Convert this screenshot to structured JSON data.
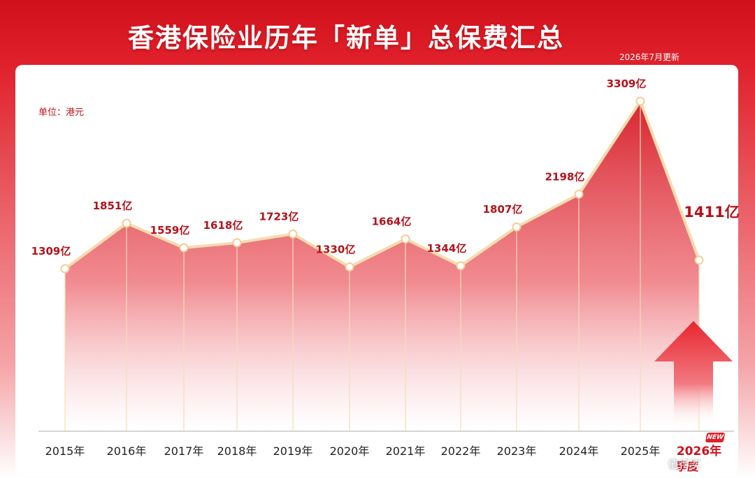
{
  "header": {
    "title": "香港保险业历年「新单」总保费汇总",
    "update_note": "2026年7月更新"
  },
  "unit_label": "单位：港元",
  "badge": {
    "new": "NEW",
    "quarter": "季度"
  },
  "watermark": "值得买",
  "colors": {
    "brand": "#d0101b",
    "line": "#f3dcb0",
    "label": "#b5121b"
  },
  "chart_data": {
    "type": "area",
    "title": "香港保险业历年「新单」总保费汇总",
    "unit": "单位：港元",
    "categories": [
      "2015年",
      "2016年",
      "2017年",
      "2018年",
      "2019年",
      "2020年",
      "2021年",
      "2022年",
      "2023年",
      "2024年",
      "2025年",
      "2026年"
    ],
    "values": [
      1309,
      1851,
      1559,
      1618,
      1723,
      1330,
      1664,
      1344,
      1807,
      2198,
      3309,
      1411
    ],
    "value_labels": [
      "1309亿",
      "1851亿",
      "1559亿",
      "1618亿",
      "1723亿",
      "1330亿",
      "1664亿",
      "1344亿",
      "1807亿",
      "2198亿",
      "3309亿",
      "1411亿"
    ],
    "highlight_category": "2026年",
    "grid": false,
    "legend": "none"
  }
}
